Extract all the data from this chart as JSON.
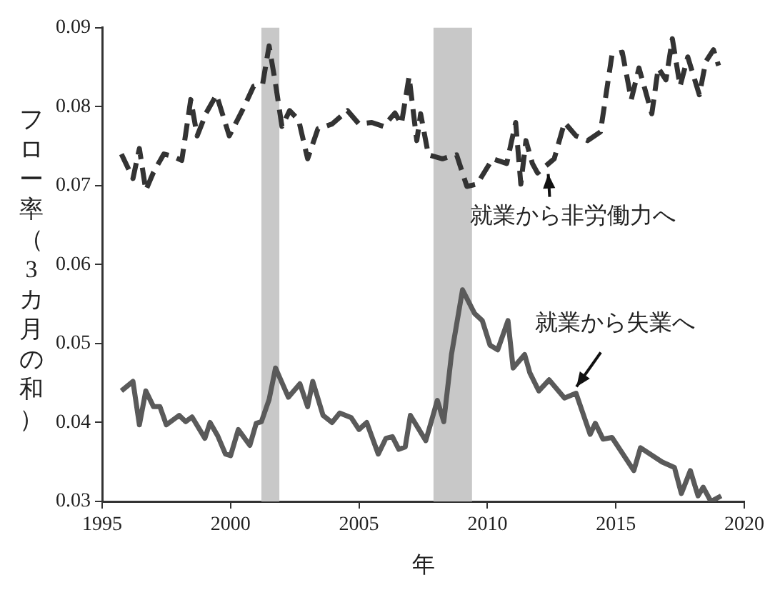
{
  "chart_data": {
    "type": "line",
    "xlabel": "年",
    "ylabel": "フロー率（3カ月の和）",
    "xlim": [
      1995,
      2020
    ],
    "xticks": [
      1995,
      2000,
      2005,
      2010,
      2015,
      2020
    ],
    "ylim": [
      0.03,
      0.09
    ],
    "yticks": [
      0.03,
      0.04,
      0.05,
      0.06,
      0.07,
      0.08,
      0.09
    ],
    "grid": false,
    "legend": false,
    "marker": "none",
    "bands": [
      {
        "axis": "x",
        "from": 2001.2,
        "to": 2001.9,
        "color": "#c8c8c8"
      },
      {
        "axis": "x",
        "from": 2007.9,
        "to": 2009.4,
        "color": "#c8c8c8"
      }
    ],
    "annotations": [
      {
        "text": "就業から非労働力へ",
        "x": 2012.2,
        "y": 0.0722
      },
      {
        "text": "就業から失業へ",
        "x": 2013.3,
        "y": 0.0438
      }
    ],
    "series": [
      {
        "color": "#333333",
        "line_style": "dashed",
        "x": [
          1995.75,
          1996.2,
          1996.45,
          1996.7,
          1997.0,
          1997.4,
          1997.75,
          1998.1,
          1998.45,
          1998.7,
          1999.05,
          1999.45,
          1999.95,
          2000.5,
          2000.9,
          2001.25,
          2001.5,
          2001.75,
          2002.0,
          2002.3,
          2002.65,
          2003.0,
          2003.4,
          2003.95,
          2004.55,
          2005.0,
          2005.5,
          2005.95,
          2006.4,
          2006.65,
          2006.95,
          2007.25,
          2007.4,
          2007.7,
          2008.25,
          2008.8,
          2009.2,
          2009.6,
          2010.2,
          2010.75,
          2011.1,
          2011.3,
          2011.5,
          2011.75,
          2011.95,
          2012.6,
          2013.0,
          2013.45,
          2013.9,
          2014.4,
          2014.85,
          2015.25,
          2015.6,
          2015.9,
          2016.4,
          2016.65,
          2016.95,
          2017.2,
          2017.5,
          2017.8,
          2018.25,
          2018.5,
          2018.8,
          2019.0
        ],
        "values": [
          0.074,
          0.0709,
          0.0747,
          0.0694,
          0.0717,
          0.074,
          0.0737,
          0.0732,
          0.0809,
          0.0763,
          0.0792,
          0.0815,
          0.0763,
          0.0798,
          0.0826,
          0.0829,
          0.0877,
          0.0829,
          0.0775,
          0.0795,
          0.0783,
          0.0734,
          0.0772,
          0.0778,
          0.0795,
          0.0778,
          0.078,
          0.0775,
          0.0792,
          0.0778,
          0.0838,
          0.0757,
          0.0791,
          0.0739,
          0.0734,
          0.0739,
          0.0699,
          0.0702,
          0.0734,
          0.0728,
          0.078,
          0.0702,
          0.0757,
          0.0728,
          0.0716,
          0.0734,
          0.078,
          0.0763,
          0.0757,
          0.0768,
          0.0866,
          0.0869,
          0.0809,
          0.0849,
          0.0791,
          0.0849,
          0.0834,
          0.0886,
          0.0826,
          0.0863,
          0.0815,
          0.0857,
          0.0872,
          0.0852
        ]
      },
      {
        "color": "#5a5a5a",
        "line_style": "solid",
        "x": [
          1995.75,
          1996.2,
          1996.45,
          1996.7,
          1997.0,
          1997.25,
          1997.5,
          1998.0,
          1998.25,
          1998.5,
          1999.0,
          1999.2,
          1999.5,
          1999.8,
          2000.0,
          2000.3,
          2000.75,
          2001.0,
          2001.2,
          2001.5,
          2001.75,
          2002.25,
          2002.7,
          2003.0,
          2003.2,
          2003.6,
          2003.95,
          2004.25,
          2004.7,
          2005.0,
          2005.3,
          2005.75,
          2006.05,
          2006.3,
          2006.55,
          2006.8,
          2007.0,
          2007.6,
          2008.05,
          2008.3,
          2008.6,
          2009.03,
          2009.5,
          2009.8,
          2010.1,
          2010.4,
          2010.8,
          2011.0,
          2011.45,
          2011.65,
          2012.0,
          2012.4,
          2013.0,
          2013.45,
          2014.0,
          2014.2,
          2014.5,
          2014.85,
          2015.7,
          2015.96,
          2016.8,
          2017.28,
          2017.55,
          2017.9,
          2018.2,
          2018.4,
          2018.7,
          2019.1
        ],
        "values": [
          0.044,
          0.0452,
          0.0397,
          0.044,
          0.042,
          0.042,
          0.0397,
          0.0409,
          0.0401,
          0.0407,
          0.038,
          0.04,
          0.0383,
          0.036,
          0.0358,
          0.0391,
          0.0371,
          0.0399,
          0.0401,
          0.0429,
          0.0469,
          0.0432,
          0.0449,
          0.042,
          0.0452,
          0.0409,
          0.04,
          0.0412,
          0.0406,
          0.0391,
          0.04,
          0.036,
          0.038,
          0.0382,
          0.0366,
          0.0369,
          0.0409,
          0.0377,
          0.0428,
          0.0401,
          0.0486,
          0.0568,
          0.0538,
          0.0529,
          0.0498,
          0.0492,
          0.0529,
          0.0469,
          0.0486,
          0.0463,
          0.044,
          0.0454,
          0.0431,
          0.0437,
          0.0385,
          0.0399,
          0.0379,
          0.0381,
          0.0339,
          0.0368,
          0.035,
          0.0343,
          0.031,
          0.0339,
          0.0307,
          0.0318,
          0.03,
          0.0307
        ]
      }
    ]
  }
}
